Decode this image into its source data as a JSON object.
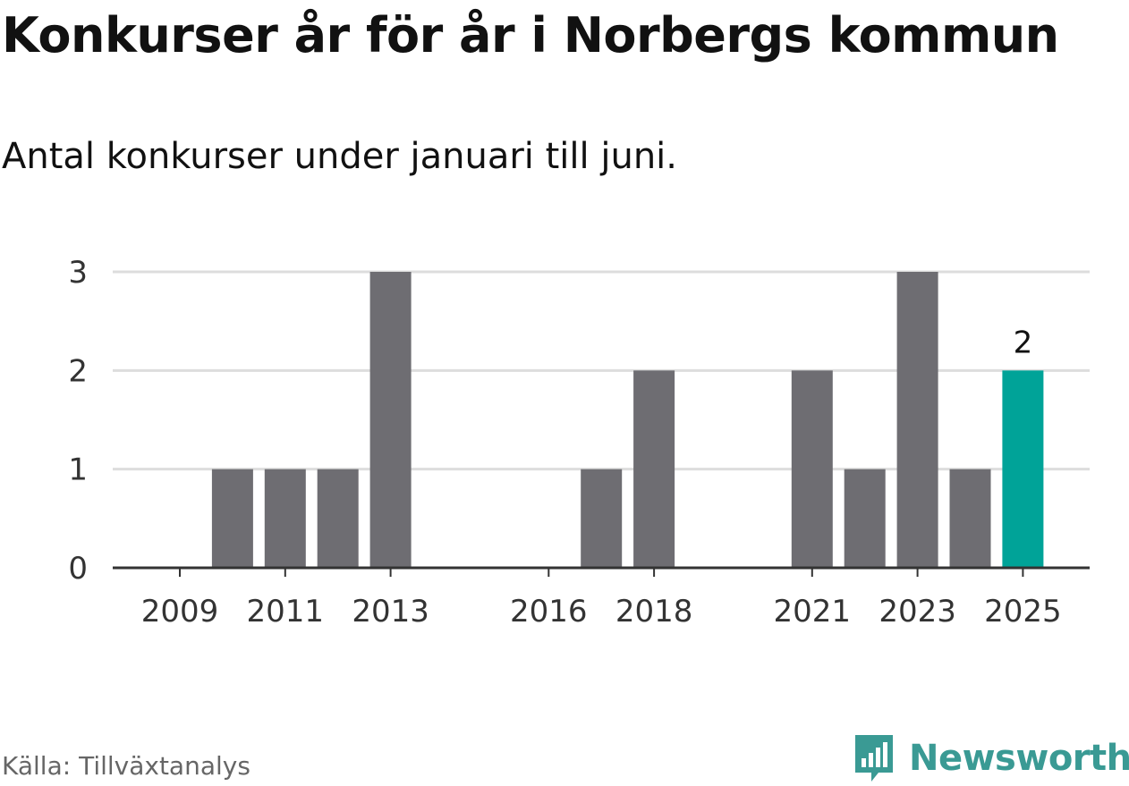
{
  "header": {
    "title": "Konkurser år för år i Norbergs kommun",
    "subtitle": "Antal konkurser under januari till juni."
  },
  "footer": {
    "source": "Källa: Tillväxtanalys",
    "brand": "Newsworthy",
    "brand_icon": "bar-chart-speech-bubble-icon"
  },
  "colors": {
    "bar": "#6e6d72",
    "highlight": "#00a398",
    "grid": "#dddddd",
    "axis": "#333333",
    "brand": "#3a9a94"
  },
  "chart_data": {
    "type": "bar",
    "categories": [
      "2009",
      "2010",
      "2011",
      "2012",
      "2013",
      "2014",
      "2015",
      "2016",
      "2017",
      "2018",
      "2019",
      "2020",
      "2021",
      "2022",
      "2023",
      "2024",
      "2025"
    ],
    "values": [
      0,
      1,
      1,
      1,
      3,
      0,
      0,
      0,
      1,
      2,
      0,
      0,
      2,
      1,
      3,
      1,
      2
    ],
    "xtick_labels": [
      "2009",
      "2011",
      "2013",
      "2016",
      "2018",
      "2021",
      "2023",
      "2025"
    ],
    "yticks": [
      "0",
      "1",
      "2",
      "3"
    ],
    "ylim": [
      0,
      3
    ],
    "highlight": "2025",
    "highlight_label": "2",
    "grid": "horizontal",
    "legend": "none"
  }
}
